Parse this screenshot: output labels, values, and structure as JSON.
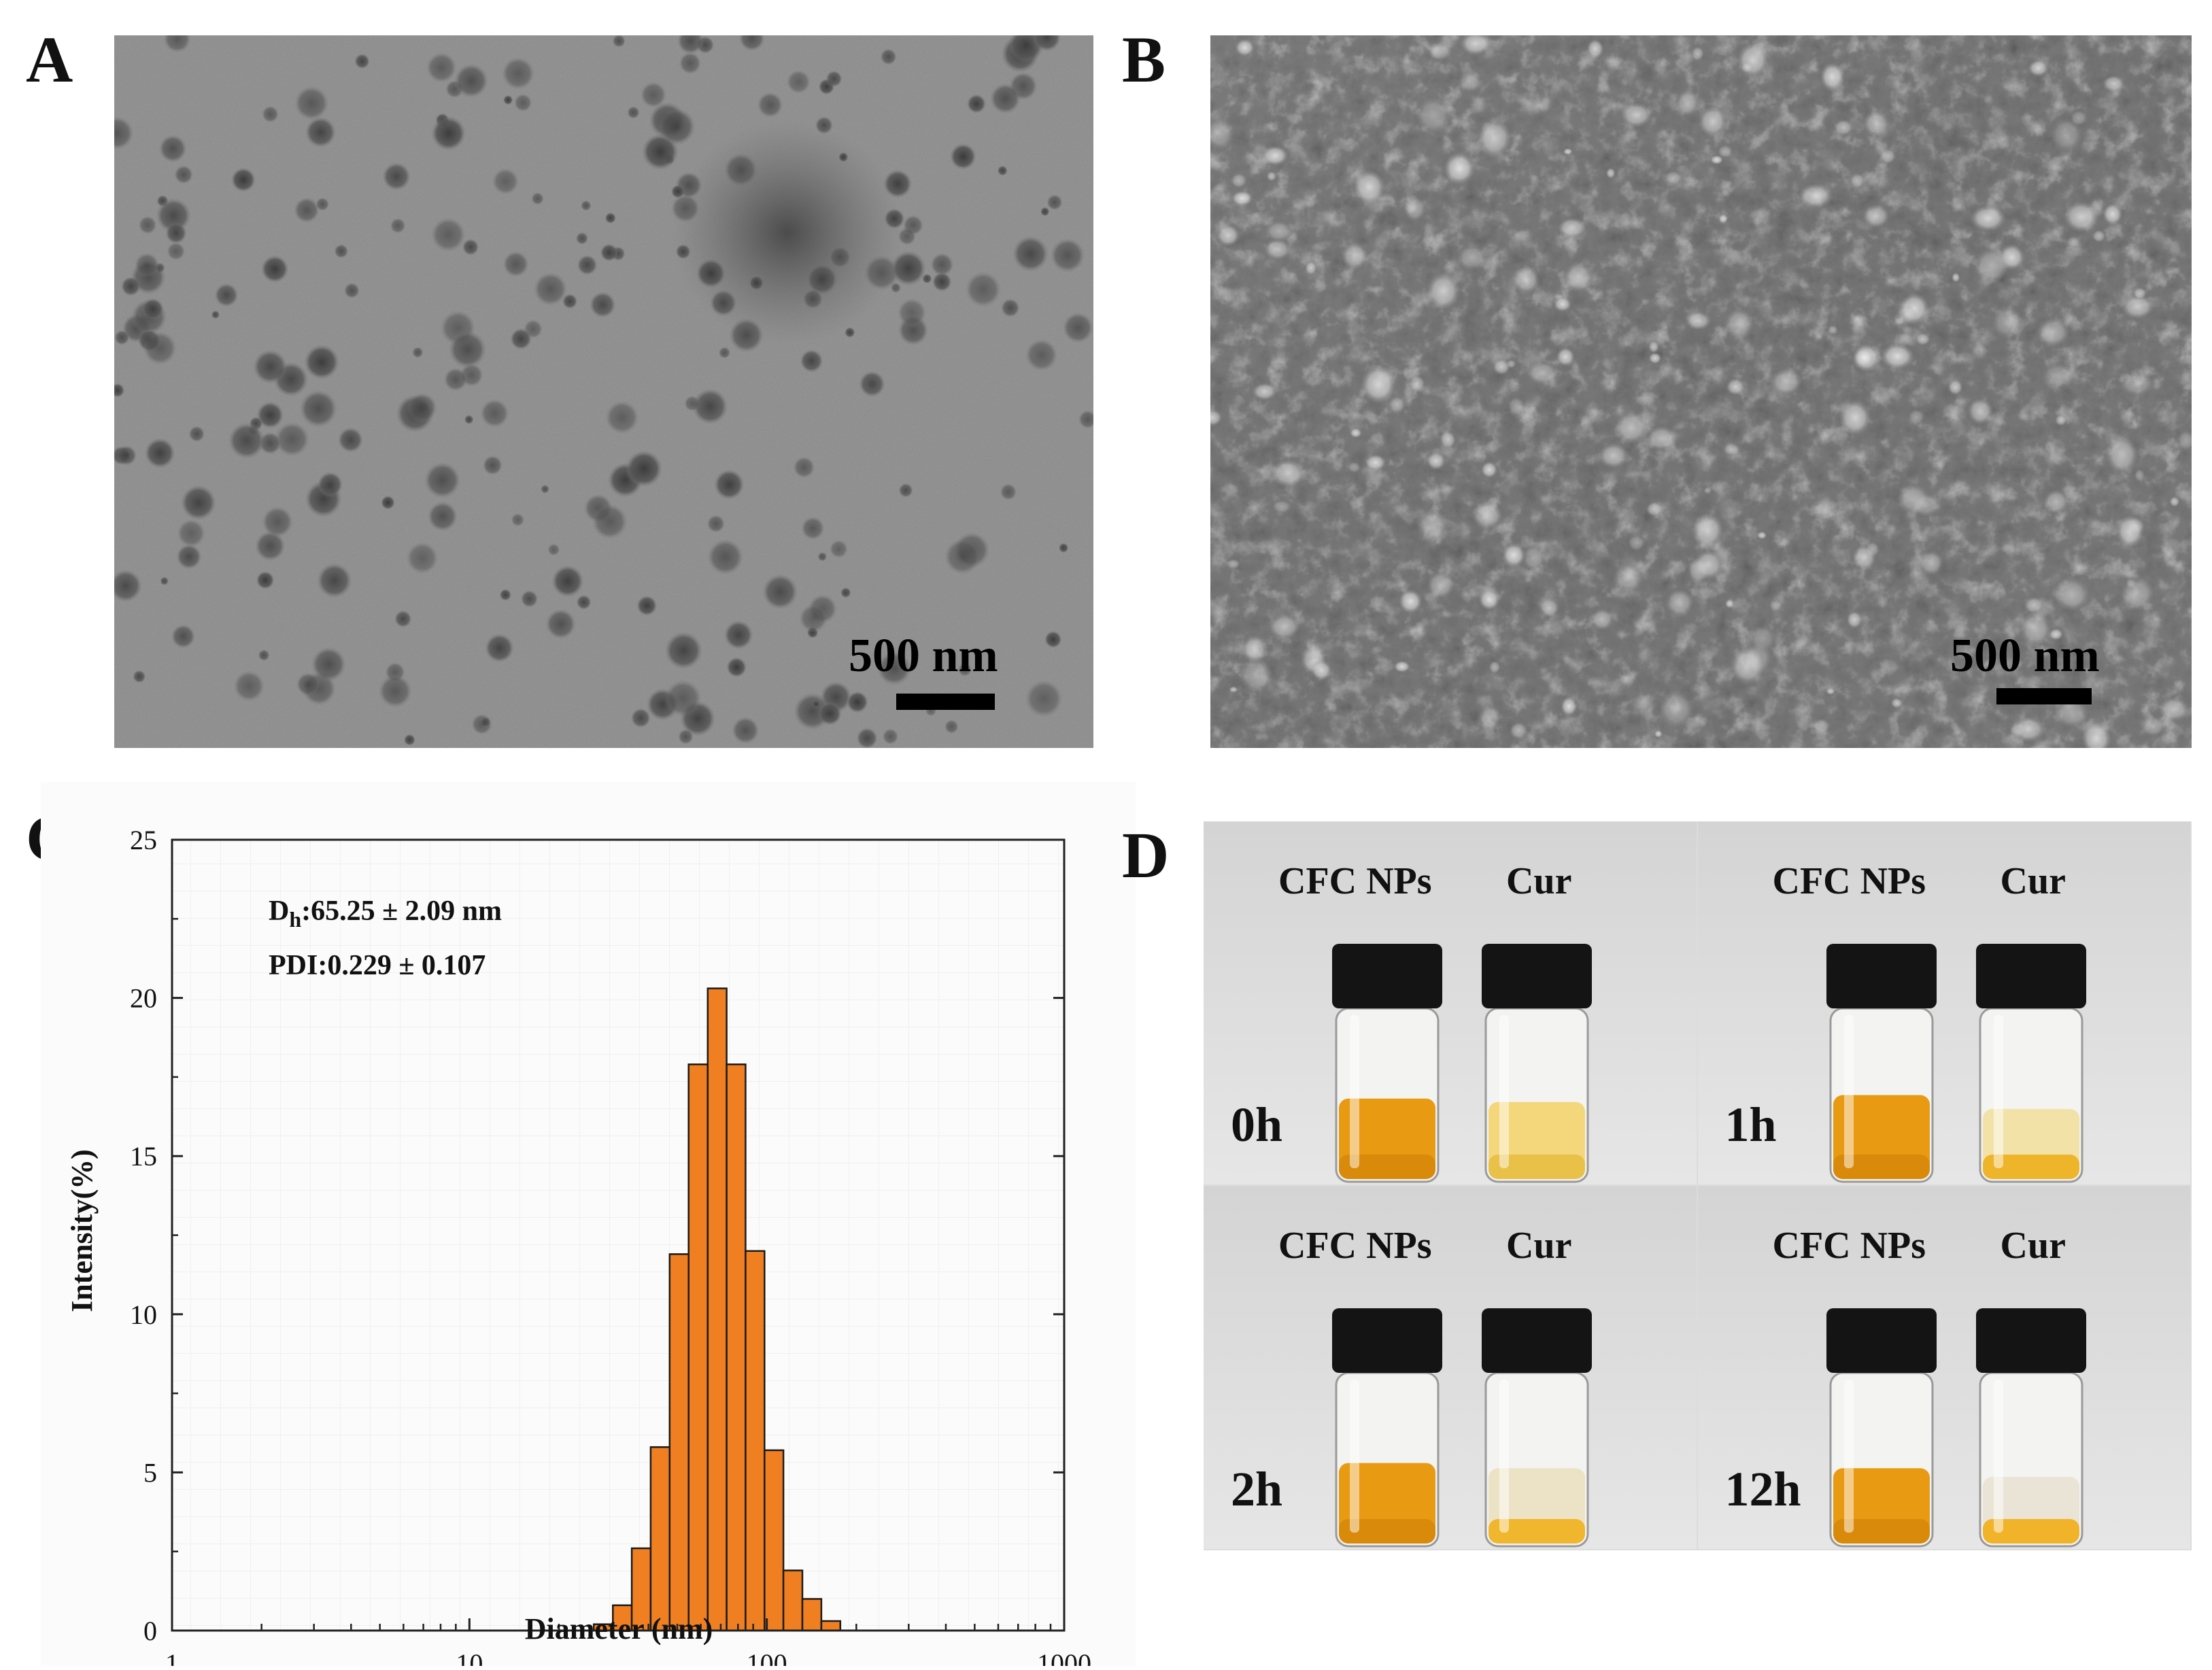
{
  "panels": {
    "a": {
      "label": "A",
      "scale": "500 nm"
    },
    "b": {
      "label": "B",
      "scale": "500 nm"
    },
    "c": {
      "label": "C"
    },
    "d": {
      "label": "D"
    }
  },
  "chart_data": {
    "type": "bar",
    "xlabel": "Diameter (nm)",
    "ylabel": "Intensity(%)",
    "x_scale": "log",
    "xlim": [
      1,
      1000
    ],
    "ylim": [
      0,
      25
    ],
    "x_ticks": [
      "1",
      "10",
      "100",
      "1000"
    ],
    "y_ticks": [
      "0",
      "5",
      "10",
      "15",
      "20",
      "25"
    ],
    "annotations": {
      "dh_prefix": "D",
      "dh_sub": "h",
      "dh_value": ":65.25 ± 2.09 nm",
      "pdi": "PDI:0.229 ± 0.107"
    },
    "bar_color": "#f07f22",
    "bars": [
      {
        "x": 28.2,
        "value": 0.2
      },
      {
        "x": 32.7,
        "value": 0.8
      },
      {
        "x": 37.8,
        "value": 2.6
      },
      {
        "x": 43.8,
        "value": 5.8
      },
      {
        "x": 50.7,
        "value": 11.9
      },
      {
        "x": 58.8,
        "value": 17.9
      },
      {
        "x": 68.1,
        "value": 20.3
      },
      {
        "x": 78.8,
        "value": 17.9
      },
      {
        "x": 91.3,
        "value": 12.0
      },
      {
        "x": 105.7,
        "value": 5.7
      },
      {
        "x": 122.4,
        "value": 1.9
      },
      {
        "x": 141.8,
        "value": 1.0
      },
      {
        "x": 164.2,
        "value": 0.3
      }
    ]
  },
  "vials": [
    {
      "name_left": "CFC NPs",
      "name_right": "Cur",
      "time": "0h"
    },
    {
      "name_left": "CFC NPs",
      "name_right": "Cur",
      "time": "1h"
    },
    {
      "name_left": "CFC NPs",
      "name_right": "Cur",
      "time": "2h"
    },
    {
      "name_left": "CFC NPs",
      "name_right": "Cur",
      "time": "12h"
    }
  ]
}
